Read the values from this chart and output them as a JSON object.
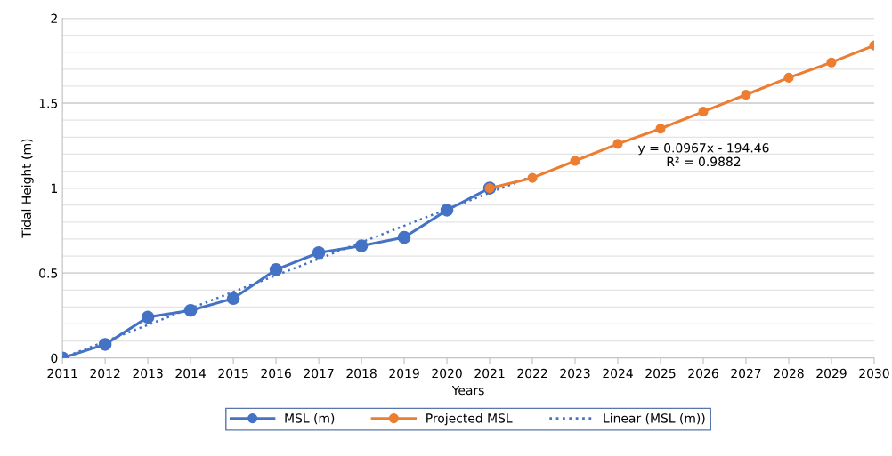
{
  "chart_data": {
    "type": "line",
    "xlabel": "Years",
    "ylabel": "Tidal Height (m)",
    "xlim": [
      2011,
      2030
    ],
    "xticks": [
      2011,
      2012,
      2013,
      2014,
      2015,
      2016,
      2017,
      2018,
      2019,
      2020,
      2021,
      2022,
      2023,
      2024,
      2025,
      2026,
      2027,
      2028,
      2029,
      2030
    ],
    "ylim": [
      0,
      2
    ],
    "yticks": [
      0,
      {
        "value": 0.1,
        "label": null
      },
      {
        "value": 0.2,
        "label": null
      },
      {
        "value": 0.3,
        "label": null
      },
      {
        "value": 0.4,
        "label": null
      },
      0.5,
      {
        "value": 0.6,
        "label": null
      },
      {
        "value": 0.7,
        "label": null
      },
      {
        "value": 0.8,
        "label": null
      },
      {
        "value": 0.9,
        "label": null
      },
      1,
      {
        "value": 1.1,
        "label": null
      },
      {
        "value": 1.2,
        "label": null
      },
      {
        "value": 1.3,
        "label": null
      },
      {
        "value": 1.4,
        "label": null
      },
      1.5,
      {
        "value": 1.6,
        "label": null
      },
      {
        "value": 1.7,
        "label": null
      },
      {
        "value": 1.8,
        "label": null
      },
      {
        "value": 1.9,
        "label": null
      },
      2
    ],
    "grid": "y",
    "legend": "bottom",
    "marker": "circle",
    "series": [
      {
        "name": "MSL (m)",
        "color": "#4472c4",
        "x": [
          2011,
          2012,
          2013,
          2014,
          2015,
          2016,
          2017,
          2018,
          2019,
          2020,
          2021
        ],
        "values": [
          0,
          0.08,
          0.24,
          0.28,
          0.35,
          0.52,
          0.62,
          0.66,
          0.71,
          0.87,
          1.0
        ]
      },
      {
        "name": "Projected MSL",
        "color": "#ed7d31",
        "x": [
          2021,
          2022,
          2023,
          2024,
          2025,
          2026,
          2027,
          2028,
          2029,
          2030
        ],
        "values": [
          1.0,
          1.06,
          1.16,
          1.26,
          1.35,
          1.45,
          1.55,
          1.65,
          1.74,
          1.84
        ]
      },
      {
        "name": "Linear (MSL (m))",
        "color": "#4472c4",
        "type": "line",
        "marker": "none",
        "line_style": "dotted",
        "x": [
          2011,
          2022
        ],
        "values": [
          0.0,
          1.07
        ]
      }
    ],
    "annotations": [
      "y = 0.0967x - 194.46\nR² = 0.9882"
    ]
  }
}
